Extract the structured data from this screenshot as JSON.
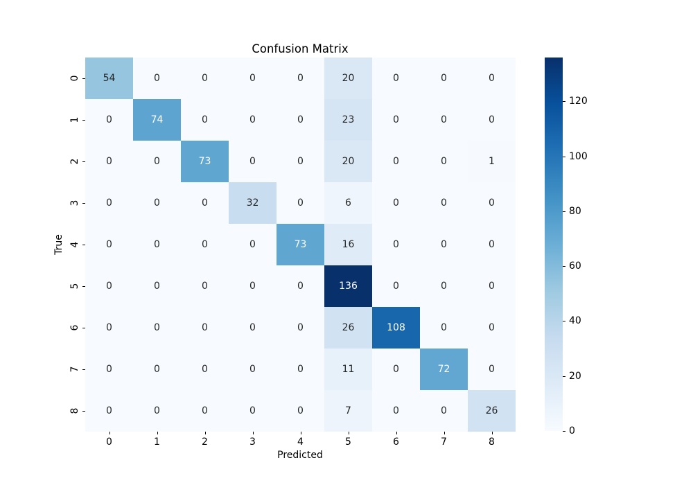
{
  "figure": {
    "background": "#ffffff"
  },
  "chart_data": {
    "type": "heatmap",
    "title": "Confusion Matrix",
    "xlabel": "Predicted",
    "ylabel": "True",
    "x_tick_labels": [
      "0",
      "1",
      "2",
      "3",
      "4",
      "5",
      "6",
      "7",
      "8"
    ],
    "y_tick_labels": [
      "0",
      "1",
      "2",
      "3",
      "4",
      "5",
      "6",
      "7",
      "8"
    ],
    "matrix": [
      [
        54,
        0,
        0,
        0,
        0,
        20,
        0,
        0,
        0
      ],
      [
        0,
        74,
        0,
        0,
        0,
        23,
        0,
        0,
        0
      ],
      [
        0,
        0,
        73,
        0,
        0,
        20,
        0,
        0,
        1
      ],
      [
        0,
        0,
        0,
        32,
        0,
        6,
        0,
        0,
        0
      ],
      [
        0,
        0,
        0,
        0,
        73,
        16,
        0,
        0,
        0
      ],
      [
        0,
        0,
        0,
        0,
        0,
        136,
        0,
        0,
        0
      ],
      [
        0,
        0,
        0,
        0,
        0,
        26,
        108,
        0,
        0
      ],
      [
        0,
        0,
        0,
        0,
        0,
        11,
        0,
        72,
        0
      ],
      [
        0,
        0,
        0,
        0,
        0,
        7,
        0,
        0,
        26
      ]
    ],
    "vmin": 0,
    "vmax": 136,
    "colormap": {
      "name": "Blues",
      "stops": [
        "#f7fbff",
        "#deebf7",
        "#c6dbef",
        "#9ecae1",
        "#6baed6",
        "#4292c6",
        "#2171b5",
        "#08519c",
        "#08306b"
      ]
    },
    "colorbar": {
      "position": "right",
      "ticks": [
        0,
        20,
        40,
        60,
        80,
        100,
        120
      ]
    },
    "annotation_colors": {
      "dark_text": "#262626",
      "light_text": "#ffffff"
    },
    "legend": false,
    "grid": false
  }
}
